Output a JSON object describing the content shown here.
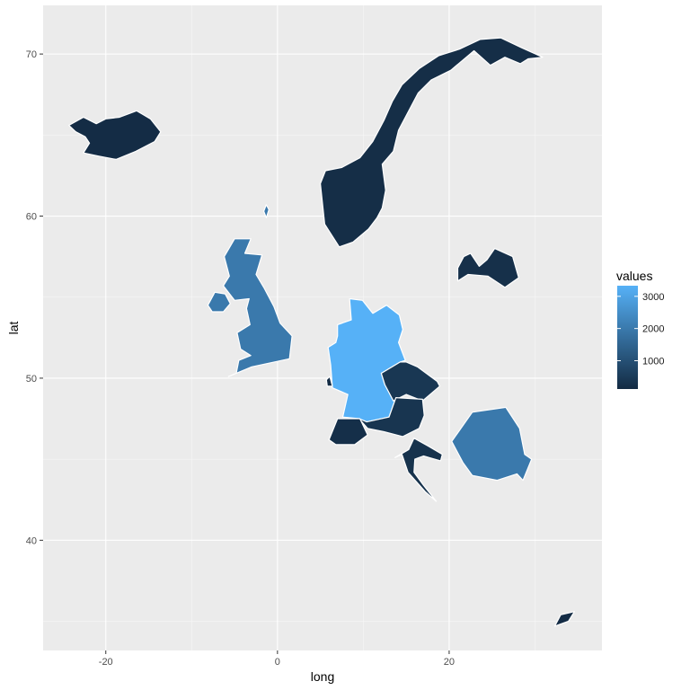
{
  "chart_data": {
    "type": "choropleth-map",
    "title": "",
    "xlabel": "long",
    "ylabel": "lat",
    "xlim": [
      -27.3,
      37.8
    ],
    "ylim": [
      33.2,
      73.0
    ],
    "x_ticks": [
      -20,
      0,
      20
    ],
    "x_tick_labels": [
      "-20",
      "0",
      "20"
    ],
    "y_ticks": [
      40,
      50,
      60,
      70
    ],
    "y_tick_labels": [
      "40",
      "50",
      "60",
      "70"
    ],
    "grid": true,
    "legend": {
      "title": "values",
      "placement": "right",
      "low_color": "#132B43",
      "high_color": "#56B1F7",
      "min": 120,
      "max": 3330,
      "breaks": [
        1000,
        2000,
        3000
      ],
      "break_labels": [
        "1000",
        "2000",
        "3000"
      ]
    },
    "regions": [
      {
        "id": "iceland",
        "value": 150,
        "outline": [
          [
            -24.3,
            65.6
          ],
          [
            -22.6,
            66.1
          ],
          [
            -21.1,
            65.7
          ],
          [
            -20.0,
            66.0
          ],
          [
            -18.4,
            66.1
          ],
          [
            -16.4,
            66.5
          ],
          [
            -14.8,
            66.0
          ],
          [
            -13.6,
            65.2
          ],
          [
            -14.3,
            64.6
          ],
          [
            -16.5,
            64.0
          ],
          [
            -18.8,
            63.5
          ],
          [
            -20.8,
            63.7
          ],
          [
            -22.6,
            63.9
          ],
          [
            -21.9,
            64.5
          ],
          [
            -22.4,
            64.9
          ],
          [
            -23.5,
            65.2
          ]
        ]
      },
      {
        "id": "norway",
        "value": 200,
        "outline": [
          [
            5.0,
            62.0
          ],
          [
            5.5,
            59.5
          ],
          [
            7.2,
            58.1
          ],
          [
            8.8,
            58.4
          ],
          [
            10.6,
            59.2
          ],
          [
            11.6,
            59.9
          ],
          [
            12.2,
            60.5
          ],
          [
            12.6,
            61.6
          ],
          [
            12.2,
            63.2
          ],
          [
            13.5,
            64.0
          ],
          [
            14.1,
            65.3
          ],
          [
            15.3,
            66.5
          ],
          [
            16.4,
            67.6
          ],
          [
            17.9,
            68.4
          ],
          [
            20.2,
            69.0
          ],
          [
            21.1,
            69.4
          ],
          [
            22.9,
            70.2
          ],
          [
            24.8,
            69.3
          ],
          [
            26.5,
            69.8
          ],
          [
            28.3,
            69.4
          ],
          [
            29.2,
            69.7
          ],
          [
            30.9,
            69.8
          ],
          [
            28.4,
            70.4
          ],
          [
            26.0,
            71.0
          ],
          [
            23.6,
            70.9
          ],
          [
            21.2,
            70.3
          ],
          [
            18.8,
            69.9
          ],
          [
            16.5,
            69.1
          ],
          [
            14.5,
            68.1
          ],
          [
            13.4,
            67.1
          ],
          [
            12.4,
            65.9
          ],
          [
            11.1,
            64.6
          ],
          [
            9.6,
            63.6
          ],
          [
            7.5,
            63.0
          ],
          [
            5.6,
            62.8
          ]
        ]
      },
      {
        "id": "uk",
        "value": 2000,
        "outline": [
          [
            -5.7,
            50.1
          ],
          [
            -3.0,
            50.7
          ],
          [
            1.4,
            51.2
          ],
          [
            1.7,
            52.6
          ],
          [
            0.3,
            53.4
          ],
          [
            -0.4,
            54.4
          ],
          [
            -1.6,
            55.6
          ],
          [
            -2.5,
            56.4
          ],
          [
            -1.8,
            57.6
          ],
          [
            -3.8,
            57.7
          ],
          [
            -3.1,
            58.6
          ],
          [
            -5.0,
            58.6
          ],
          [
            -6.2,
            57.5
          ],
          [
            -5.6,
            56.3
          ],
          [
            -6.3,
            55.7
          ],
          [
            -5.0,
            54.8
          ],
          [
            -3.3,
            54.9
          ],
          [
            -3.6,
            54.3
          ],
          [
            -3.2,
            53.3
          ],
          [
            -4.7,
            52.8
          ],
          [
            -4.3,
            51.8
          ],
          [
            -3.1,
            51.4
          ],
          [
            -4.5,
            51.1
          ],
          [
            -4.8,
            50.3
          ]
        ]
      },
      {
        "id": "n-ireland",
        "value": 2000,
        "outline": [
          [
            -8.1,
            54.5
          ],
          [
            -7.3,
            55.3
          ],
          [
            -6.1,
            55.2
          ],
          [
            -5.5,
            54.6
          ],
          [
            -6.3,
            54.1
          ],
          [
            -7.6,
            54.1
          ]
        ]
      },
      {
        "id": "shetland",
        "value": 2000,
        "outline": [
          [
            -1.3,
            59.9
          ],
          [
            -1.0,
            60.4
          ],
          [
            -1.3,
            60.7
          ],
          [
            -1.6,
            60.3
          ]
        ]
      },
      {
        "id": "germany",
        "value": 3330,
        "outline": [
          [
            7.0,
            53.3
          ],
          [
            8.6,
            53.6
          ],
          [
            8.4,
            54.9
          ],
          [
            9.9,
            54.8
          ],
          [
            11.1,
            54.0
          ],
          [
            12.7,
            54.5
          ],
          [
            14.2,
            53.9
          ],
          [
            14.6,
            53.0
          ],
          [
            14.1,
            52.2
          ],
          [
            14.9,
            51.1
          ],
          [
            14.3,
            51.0
          ],
          [
            12.1,
            50.3
          ],
          [
            12.5,
            49.6
          ],
          [
            13.8,
            48.8
          ],
          [
            13.0,
            47.6
          ],
          [
            10.4,
            47.3
          ],
          [
            9.5,
            47.5
          ],
          [
            7.6,
            47.6
          ],
          [
            8.2,
            49.0
          ],
          [
            6.4,
            49.4
          ],
          [
            6.2,
            50.8
          ],
          [
            5.9,
            51.9
          ],
          [
            6.8,
            52.2
          ],
          [
            7.0,
            52.6
          ]
        ]
      },
      {
        "id": "czechia",
        "value": 400,
        "outline": [
          [
            12.1,
            50.3
          ],
          [
            14.3,
            51.0
          ],
          [
            15.0,
            51.0
          ],
          [
            16.3,
            50.7
          ],
          [
            18.6,
            49.8
          ],
          [
            18.9,
            49.5
          ],
          [
            16.9,
            48.6
          ],
          [
            15.0,
            49.0
          ],
          [
            13.5,
            48.6
          ],
          [
            12.5,
            49.6
          ]
        ]
      },
      {
        "id": "austria",
        "value": 350,
        "outline": [
          [
            9.5,
            47.5
          ],
          [
            10.4,
            47.3
          ],
          [
            13.0,
            47.6
          ],
          [
            13.8,
            48.8
          ],
          [
            16.9,
            48.7
          ],
          [
            17.1,
            47.7
          ],
          [
            16.5,
            46.9
          ],
          [
            14.6,
            46.4
          ],
          [
            12.4,
            46.7
          ],
          [
            10.5,
            46.9
          ]
        ]
      },
      {
        "id": "switzerland",
        "value": 220,
        "outline": [
          [
            6.0,
            46.2
          ],
          [
            7.0,
            47.5
          ],
          [
            9.6,
            47.5
          ],
          [
            10.5,
            46.5
          ],
          [
            9.0,
            45.9
          ],
          [
            6.8,
            45.9
          ]
        ]
      },
      {
        "id": "luxembourg",
        "value": 150,
        "outline": [
          [
            5.8,
            49.5
          ],
          [
            6.4,
            49.5
          ],
          [
            6.1,
            50.1
          ],
          [
            5.7,
            49.9
          ]
        ]
      },
      {
        "id": "croatia",
        "value": 300,
        "outline": [
          [
            13.7,
            45.1
          ],
          [
            15.3,
            45.6
          ],
          [
            15.9,
            46.3
          ],
          [
            17.6,
            45.8
          ],
          [
            19.2,
            45.3
          ],
          [
            19.0,
            44.9
          ],
          [
            17.0,
            45.2
          ],
          [
            16.0,
            45.0
          ],
          [
            15.9,
            44.2
          ],
          [
            17.0,
            43.4
          ],
          [
            18.5,
            42.4
          ],
          [
            17.2,
            43.0
          ],
          [
            15.2,
            44.2
          ],
          [
            14.5,
            45.3
          ]
        ]
      },
      {
        "id": "romania",
        "value": 2000,
        "outline": [
          [
            20.3,
            46.1
          ],
          [
            22.7,
            47.9
          ],
          [
            26.6,
            48.2
          ],
          [
            28.2,
            46.9
          ],
          [
            28.8,
            45.3
          ],
          [
            29.6,
            45.0
          ],
          [
            28.6,
            43.7
          ],
          [
            27.9,
            44.1
          ],
          [
            25.6,
            43.7
          ],
          [
            22.7,
            44.0
          ],
          [
            21.6,
            44.8
          ]
        ]
      },
      {
        "id": "latvia",
        "value": 250,
        "outline": [
          [
            21.0,
            56.8
          ],
          [
            21.7,
            57.5
          ],
          [
            22.5,
            57.7
          ],
          [
            23.5,
            56.9
          ],
          [
            24.4,
            57.3
          ],
          [
            25.3,
            58.0
          ],
          [
            27.4,
            57.5
          ],
          [
            28.1,
            56.2
          ],
          [
            26.5,
            55.6
          ],
          [
            24.5,
            56.3
          ],
          [
            22.2,
            56.4
          ],
          [
            21.0,
            56.0
          ]
        ]
      },
      {
        "id": "cyprus",
        "value": 150,
        "outline": [
          [
            32.3,
            34.7
          ],
          [
            33.9,
            35.0
          ],
          [
            34.6,
            35.6
          ],
          [
            33.0,
            35.4
          ]
        ]
      }
    ]
  }
}
